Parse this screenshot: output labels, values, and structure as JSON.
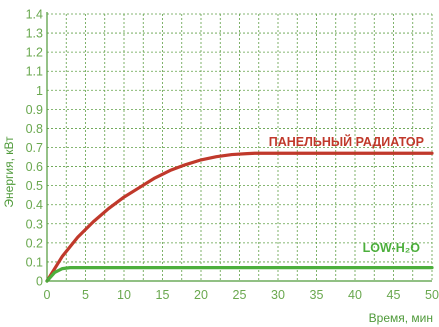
{
  "chart_data": {
    "type": "line",
    "xlabel": "Время, мин",
    "ylabel": "Энергия, кВт",
    "xlim": [
      0,
      50
    ],
    "ylim": [
      0,
      1.4
    ],
    "x_ticks": [
      "0",
      "5",
      "10",
      "15",
      "20",
      "25",
      "30",
      "35",
      "40",
      "45",
      "50"
    ],
    "y_ticks": [
      "0",
      "0.1",
      "0.2",
      "0.3",
      "0.4",
      "0.5",
      "0.6",
      "0.7",
      "0.8",
      "0.9",
      "1",
      "1.1",
      "1.2",
      "1.3",
      "1.4"
    ],
    "grid": true,
    "series": [
      {
        "name": "ПАНЕЛЬНЫЙ РАДИАТОР",
        "color": "#c0392b",
        "x": [
          0,
          2,
          4,
          6,
          8,
          10,
          12,
          14,
          16,
          18,
          20,
          22,
          24,
          26,
          27,
          28,
          30,
          35,
          40,
          45,
          50
        ],
        "y": [
          0,
          0.13,
          0.23,
          0.31,
          0.38,
          0.44,
          0.49,
          0.54,
          0.58,
          0.61,
          0.635,
          0.652,
          0.663,
          0.668,
          0.67,
          0.67,
          0.67,
          0.67,
          0.67,
          0.67,
          0.67
        ]
      },
      {
        "name": "LOW-H₂O",
        "color": "#4caf3c",
        "x": [
          0,
          1,
          2,
          3,
          5,
          10,
          20,
          30,
          40,
          50
        ],
        "y": [
          0,
          0.045,
          0.065,
          0.07,
          0.07,
          0.07,
          0.07,
          0.07,
          0.07,
          0.07
        ]
      }
    ]
  }
}
